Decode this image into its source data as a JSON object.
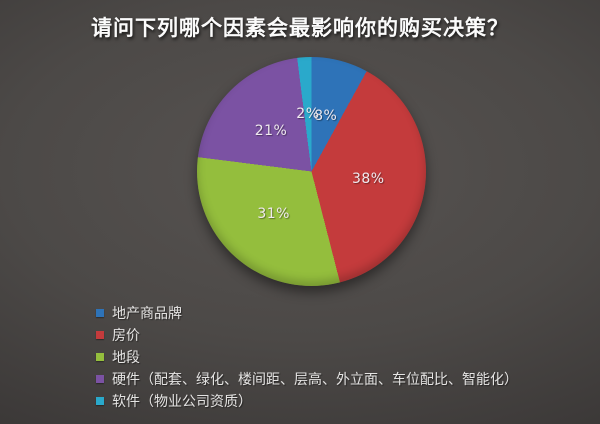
{
  "chart_data": {
    "type": "pie",
    "title": "请问下列哪个因素会最影响你的购买决策？",
    "direction": "clockwise",
    "start_angle_deg": 0,
    "data_labels": "percent-inside",
    "legend_position": "bottom-left",
    "background_color_center": "#565250",
    "background_color_edge": "#262423",
    "slices": [
      {
        "label": "地产商品牌",
        "value": 8,
        "data_label": "8%",
        "color": "#2E73B8"
      },
      {
        "label": "房价",
        "value": 38,
        "data_label": "38%",
        "color": "#C43B3C"
      },
      {
        "label": "地段",
        "value": 31,
        "data_label": "31%",
        "color": "#94BE3D"
      },
      {
        "label": "硬件（配套、绿化、楼间距、层高、外立面、车位配比、智能化）",
        "value": 21,
        "data_label": "21%",
        "color": "#7B52A3"
      },
      {
        "label": "软件（物业公司资质）",
        "value": 2,
        "data_label": "2%",
        "color": "#2AA9CB"
      }
    ]
  }
}
